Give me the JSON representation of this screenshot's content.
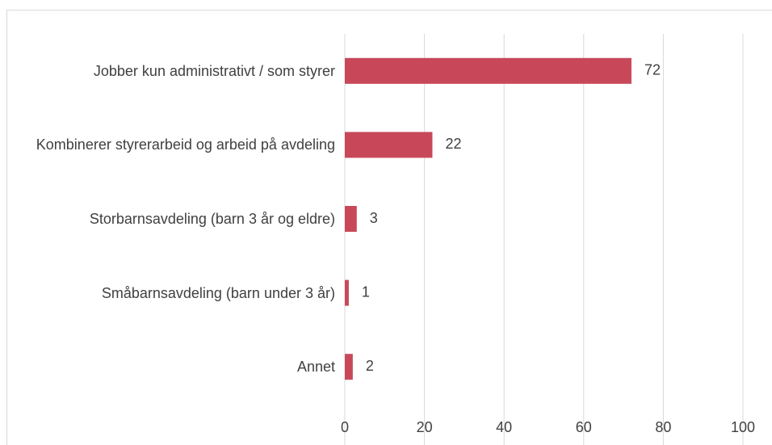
{
  "chart_data": {
    "type": "barh",
    "categories": [
      "Jobber kun administrativt / som styrer",
      "Kombinerer styrerarbeid og arbeid på avdeling",
      "Storbarnsavdeling (barn 3 år og eldre)",
      "Småbarnsavdeling (barn under 3 år)",
      "Annet"
    ],
    "values": [
      72,
      22,
      3,
      1,
      2
    ],
    "color": "#c8485a",
    "xlim": [
      0,
      100
    ],
    "xticks": [
      0,
      20,
      40,
      60,
      80,
      100
    ],
    "grid": true
  }
}
